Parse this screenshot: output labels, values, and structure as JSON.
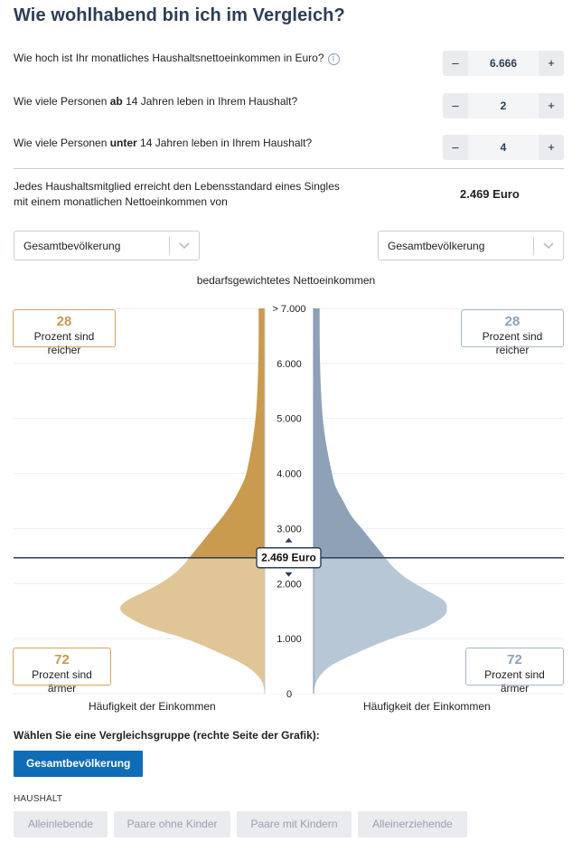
{
  "title": "Wie wohlhabend bin ich im Vergleich?",
  "questions": [
    {
      "pre": "Wie hoch ist Ihr monatliches Haushaltsnettoeinkommen in Euro?",
      "bold": "",
      "post": "",
      "value": "6.666",
      "has_info": true
    },
    {
      "pre": "Wie viele Personen ",
      "bold": "ab",
      "post": " 14 Jahren leben in Ihrem Haushalt?",
      "value": "2",
      "has_info": false
    },
    {
      "pre": "Wie viele Personen ",
      "bold": "unter",
      "post": " 14 Jahren leben in Ihrem Haushalt?",
      "value": "4",
      "has_info": false
    }
  ],
  "stepper": {
    "minus": "–",
    "plus": "+"
  },
  "info_icon": "i",
  "summary": {
    "line1": "Jedes Haushaltsmitglied erreicht den Lebensstandard eines Singles",
    "line2": "mit einem monatlichen Nettoeinkommen von",
    "value": "2.469 Euro"
  },
  "dropdowns": {
    "left": "Gesamtbevölkerung",
    "right": "Gesamtbevölkerung"
  },
  "chart_data": {
    "type": "area",
    "title": "bedarfsgewichtetes Nettoeinkommen",
    "y_ticks": [
      "0",
      "1.000",
      "2.000",
      "3.000",
      "4.000",
      "5.000",
      "6.000",
      "> 7.000"
    ],
    "ylim": [
      0,
      7000
    ],
    "marker": {
      "value": 2469,
      "label": "2.469 Euro"
    },
    "xlabel_left": "Häufigkeit der Einkommen",
    "xlabel_right": "Häufigkeit der Einkommen",
    "stats": {
      "left_richer": {
        "value": "28",
        "label": "Prozent sind reicher"
      },
      "left_poorer": {
        "value": "72",
        "label": "Prozent sind ärmer"
      },
      "right_richer": {
        "value": "28",
        "label": "Prozent sind reicher"
      },
      "right_poorer": {
        "value": "72",
        "label": "Prozent sind ärmer"
      }
    },
    "series": [
      {
        "side": "left",
        "color_above": "#c99b4e",
        "color_below": "#e0c697",
        "density": [
          [
            0,
            0.0
          ],
          [
            250,
            0.02
          ],
          [
            500,
            0.1
          ],
          [
            750,
            0.25
          ],
          [
            1000,
            0.43
          ],
          [
            1200,
            0.62
          ],
          [
            1400,
            0.74
          ],
          [
            1550,
            0.78
          ],
          [
            1700,
            0.74
          ],
          [
            1900,
            0.62
          ],
          [
            2100,
            0.52
          ],
          [
            2300,
            0.45
          ],
          [
            2500,
            0.4
          ],
          [
            2750,
            0.34
          ],
          [
            3000,
            0.28
          ],
          [
            3250,
            0.22
          ],
          [
            3500,
            0.17
          ],
          [
            3750,
            0.13
          ],
          [
            4000,
            0.1
          ],
          [
            4500,
            0.07
          ],
          [
            5000,
            0.05
          ],
          [
            5500,
            0.04
          ],
          [
            6000,
            0.035
          ],
          [
            6500,
            0.033
          ],
          [
            7000,
            0.033
          ]
        ]
      },
      {
        "side": "right",
        "color_above": "#8ea1b7",
        "color_below": "#b7c7d6",
        "density": [
          [
            0,
            0.0
          ],
          [
            250,
            0.02
          ],
          [
            500,
            0.09
          ],
          [
            750,
            0.24
          ],
          [
            1000,
            0.42
          ],
          [
            1200,
            0.6
          ],
          [
            1400,
            0.7
          ],
          [
            1550,
            0.72
          ],
          [
            1700,
            0.7
          ],
          [
            1900,
            0.6
          ],
          [
            2100,
            0.5
          ],
          [
            2300,
            0.43
          ],
          [
            2500,
            0.38
          ],
          [
            2750,
            0.32
          ],
          [
            3000,
            0.26
          ],
          [
            3250,
            0.2
          ],
          [
            3500,
            0.16
          ],
          [
            3750,
            0.12
          ],
          [
            4000,
            0.1
          ],
          [
            4500,
            0.07
          ],
          [
            5000,
            0.05
          ],
          [
            5500,
            0.04
          ],
          [
            6000,
            0.035
          ],
          [
            6500,
            0.033
          ],
          [
            7000,
            0.033
          ]
        ]
      }
    ]
  },
  "compare": {
    "heading": "Wählen Sie eine Vergleichsgruppe (rechte Seite der Grafik):",
    "primary": "Gesamtbevölkerung",
    "section": "HAUSHALT",
    "chips": [
      "Alleinlebende",
      "Paare ohne Kinder",
      "Paare mit Kindern",
      "Alleinerziehende"
    ]
  },
  "colors": {
    "accent": "#0f6cb6",
    "title": "#2c3e55",
    "marker_line": "#2c3e55"
  }
}
